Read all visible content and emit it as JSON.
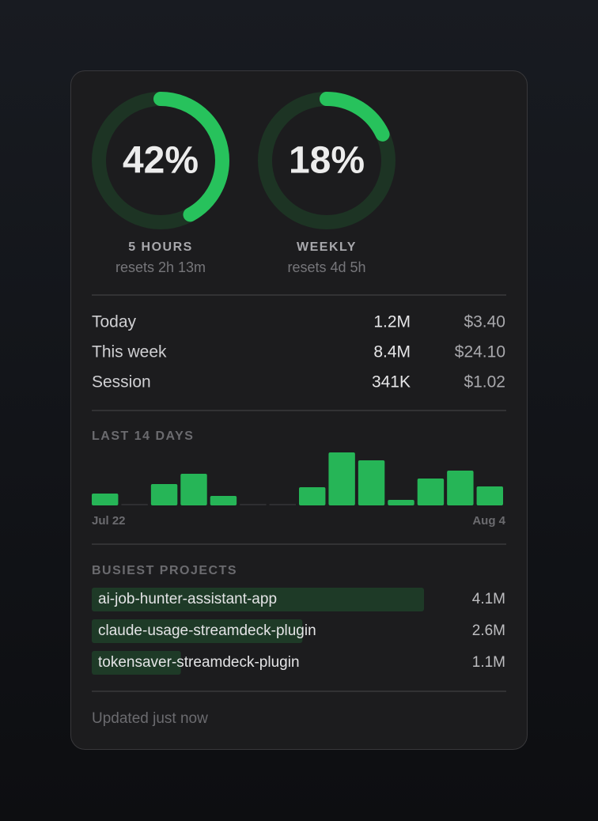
{
  "gauges": [
    {
      "value": 42,
      "label": "42%",
      "title": "5 HOURS",
      "subtitle": "resets 2h 13m"
    },
    {
      "value": 18,
      "label": "18%",
      "title": "WEEKLY",
      "subtitle": "resets 4d 5h"
    }
  ],
  "usage": {
    "rows": [
      [
        "Today",
        "1.2M",
        "$3.40"
      ],
      [
        "This week",
        "8.4M",
        "$24.10"
      ],
      [
        "Session",
        "341K",
        "$1.02"
      ]
    ]
  },
  "daily": {
    "title": "LAST 14 DAYS",
    "values": [
      15,
      0,
      27,
      40,
      12,
      0,
      0,
      23,
      67,
      57,
      7,
      34,
      44,
      24
    ],
    "start_label": "Jul 22",
    "end_label": "Aug 4"
  },
  "projects": {
    "title": "BUSIEST PROJECTS",
    "rows": [
      {
        "name": "ai-job-hunter-assistant-app",
        "value": 4100000,
        "label": "4.1M"
      },
      {
        "name": "claude-usage-streamdeck-plugin",
        "value": 2600000,
        "label": "2.6M"
      },
      {
        "name": "tokensaver-streamdeck-plugin",
        "value": 1100000,
        "label": "1.1M"
      }
    ]
  },
  "footer": "Updated just now"
}
